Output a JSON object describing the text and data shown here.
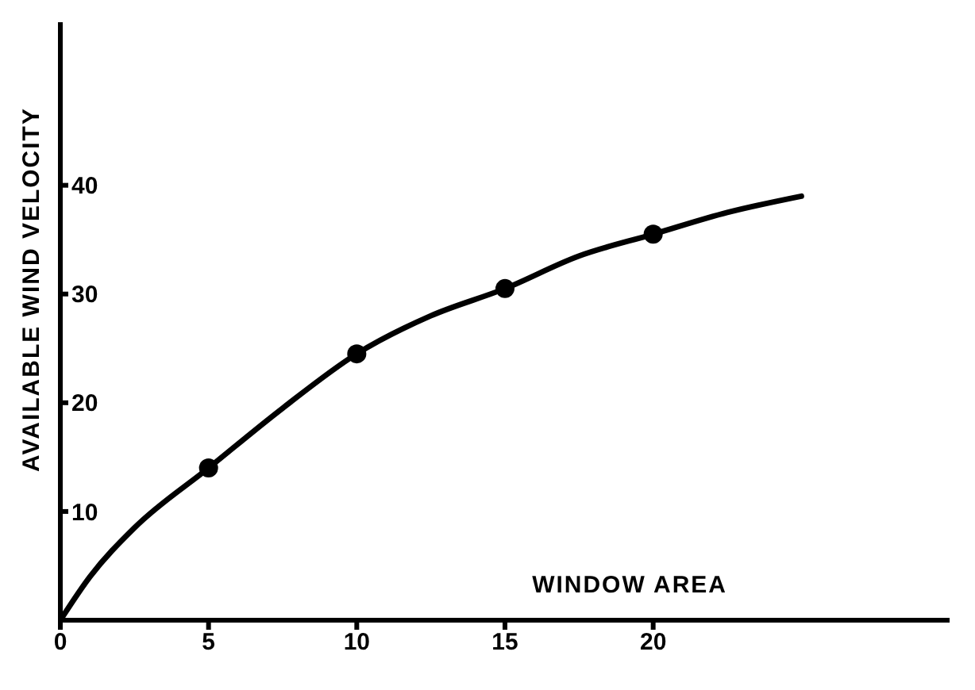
{
  "chart_data": {
    "type": "line",
    "xlabel": "WINDOW AREA",
    "ylabel": "AVAILABLE WIND VELOCITY",
    "xlim": [
      0,
      30
    ],
    "xticks": [
      0,
      5,
      10,
      15,
      20
    ],
    "ylim": [
      0,
      55
    ],
    "yticks": [
      10,
      20,
      30,
      40
    ],
    "grid": false,
    "series": [
      {
        "color": "#000000",
        "marker": "none",
        "x": [
          0,
          1,
          2.5,
          5,
          7.5,
          10,
          12.5,
          15,
          17.5,
          20,
          22.5,
          25
        ],
        "values": [
          0,
          4,
          8.5,
          14,
          19.5,
          24.5,
          28,
          30.5,
          33.5,
          35.5,
          37.5,
          39
        ]
      },
      {
        "type": "scatter",
        "color": "#000000",
        "marker": "circle",
        "x": [
          5,
          10,
          15,
          20
        ],
        "values": [
          14,
          24.5,
          30.5,
          35.5
        ]
      }
    ]
  }
}
